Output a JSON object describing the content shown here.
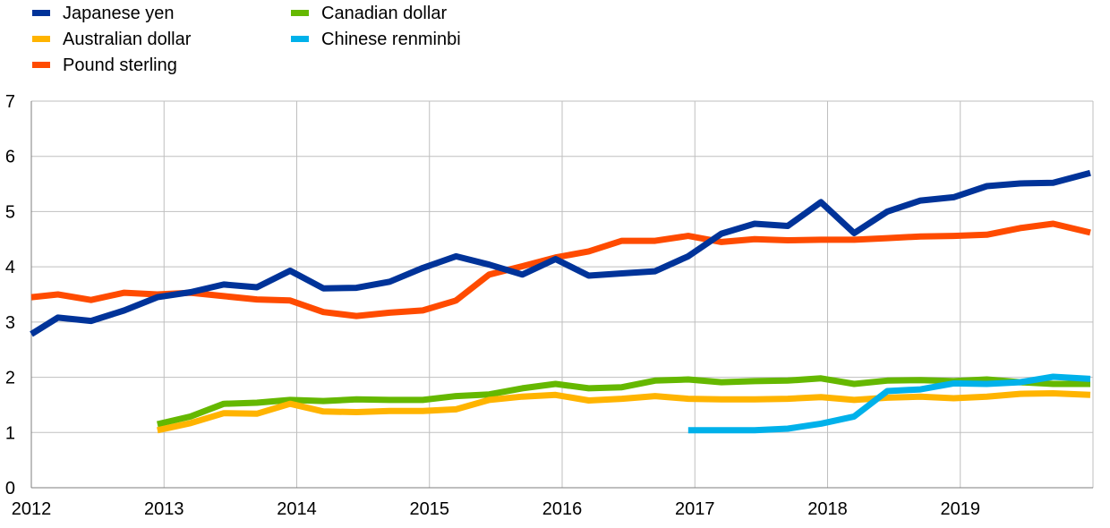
{
  "chart_data": {
    "type": "line",
    "title": "",
    "xlabel": "",
    "ylabel": "",
    "xlim": [
      2012.0,
      2020.0
    ],
    "ylim": [
      0,
      7
    ],
    "yticks": [
      "0",
      "1",
      "2",
      "3",
      "4",
      "5",
      "6",
      "7"
    ],
    "xticks": [
      "2012",
      "2013",
      "2014",
      "2015",
      "2016",
      "2017",
      "2018",
      "2019"
    ],
    "grid": true,
    "legend_position": "top-left",
    "series": [
      {
        "name": "Japanese yen",
        "color": "#003399",
        "x": [
          2012.0,
          2012.2,
          2012.45,
          2012.7,
          2012.95,
          2013.2,
          2013.45,
          2013.7,
          2013.95,
          2014.2,
          2014.45,
          2014.7,
          2014.95,
          2015.2,
          2015.45,
          2015.7,
          2015.95,
          2016.2,
          2016.45,
          2016.7,
          2016.95,
          2017.2,
          2017.45,
          2017.7,
          2017.95,
          2018.2,
          2018.45,
          2018.7,
          2018.95,
          2019.2,
          2019.45,
          2019.7,
          2019.98
        ],
        "y": [
          2.78,
          3.08,
          3.02,
          3.21,
          3.45,
          3.54,
          3.68,
          3.63,
          3.93,
          3.61,
          3.62,
          3.73,
          3.98,
          4.19,
          4.04,
          3.86,
          4.14,
          3.84,
          3.88,
          3.92,
          4.19,
          4.6,
          4.78,
          4.74,
          5.17,
          4.61,
          5.0,
          5.2,
          5.26,
          5.46,
          5.51,
          5.52,
          5.7
        ]
      },
      {
        "name": "Australian dollar",
        "color": "#ffb400",
        "x": [
          2012.95,
          2013.2,
          2013.45,
          2013.7,
          2013.95,
          2014.2,
          2014.45,
          2014.7,
          2014.95,
          2015.2,
          2015.45,
          2015.7,
          2015.95,
          2016.2,
          2016.45,
          2016.7,
          2016.95,
          2017.2,
          2017.45,
          2017.7,
          2017.95,
          2018.2,
          2018.45,
          2018.7,
          2018.95,
          2019.2,
          2019.45,
          2019.7,
          2019.98
        ],
        "y": [
          1.04,
          1.17,
          1.35,
          1.34,
          1.52,
          1.38,
          1.37,
          1.39,
          1.39,
          1.42,
          1.59,
          1.65,
          1.68,
          1.58,
          1.61,
          1.66,
          1.61,
          1.6,
          1.6,
          1.61,
          1.64,
          1.59,
          1.63,
          1.65,
          1.62,
          1.65,
          1.7,
          1.71,
          1.68
        ]
      },
      {
        "name": "Pound sterling",
        "color": "#ff4b00",
        "x": [
          2012.0,
          2012.2,
          2012.45,
          2012.7,
          2012.95,
          2013.2,
          2013.45,
          2013.7,
          2013.95,
          2014.2,
          2014.45,
          2014.7,
          2014.95,
          2015.2,
          2015.45,
          2015.7,
          2015.95,
          2016.2,
          2016.45,
          2016.7,
          2016.95,
          2017.2,
          2017.45,
          2017.7,
          2017.95,
          2018.2,
          2018.45,
          2018.7,
          2018.95,
          2019.2,
          2019.45,
          2019.7,
          2019.98
        ],
        "y": [
          3.45,
          3.5,
          3.4,
          3.53,
          3.5,
          3.53,
          3.47,
          3.41,
          3.39,
          3.18,
          3.11,
          3.17,
          3.21,
          3.39,
          3.86,
          4.01,
          4.17,
          4.28,
          4.47,
          4.47,
          4.56,
          4.45,
          4.5,
          4.48,
          4.49,
          4.49,
          4.52,
          4.55,
          4.56,
          4.58,
          4.7,
          4.78,
          4.62
        ]
      },
      {
        "name": "Canadian dollar",
        "color": "#65b800",
        "x": [
          2012.95,
          2013.2,
          2013.45,
          2013.7,
          2013.95,
          2014.2,
          2014.45,
          2014.7,
          2014.95,
          2015.2,
          2015.45,
          2015.7,
          2015.95,
          2016.2,
          2016.45,
          2016.7,
          2016.95,
          2017.2,
          2017.45,
          2017.7,
          2017.95,
          2018.2,
          2018.45,
          2018.7,
          2018.95,
          2019.2,
          2019.45,
          2019.7,
          2019.98
        ],
        "y": [
          1.15,
          1.29,
          1.52,
          1.54,
          1.59,
          1.57,
          1.6,
          1.59,
          1.59,
          1.66,
          1.69,
          1.8,
          1.88,
          1.8,
          1.82,
          1.94,
          1.96,
          1.91,
          1.93,
          1.94,
          1.98,
          1.88,
          1.94,
          1.95,
          1.93,
          1.96,
          1.91,
          1.88,
          1.88
        ]
      },
      {
        "name": "Chinese renminbi",
        "color": "#00b1ea",
        "x": [
          2016.95,
          2017.2,
          2017.45,
          2017.7,
          2017.95,
          2018.2,
          2018.45,
          2018.7,
          2018.95,
          2019.2,
          2019.45,
          2019.7,
          2019.98
        ],
        "y": [
          1.04,
          1.04,
          1.04,
          1.07,
          1.16,
          1.29,
          1.75,
          1.78,
          1.89,
          1.88,
          1.91,
          2.01,
          1.97
        ]
      }
    ]
  }
}
